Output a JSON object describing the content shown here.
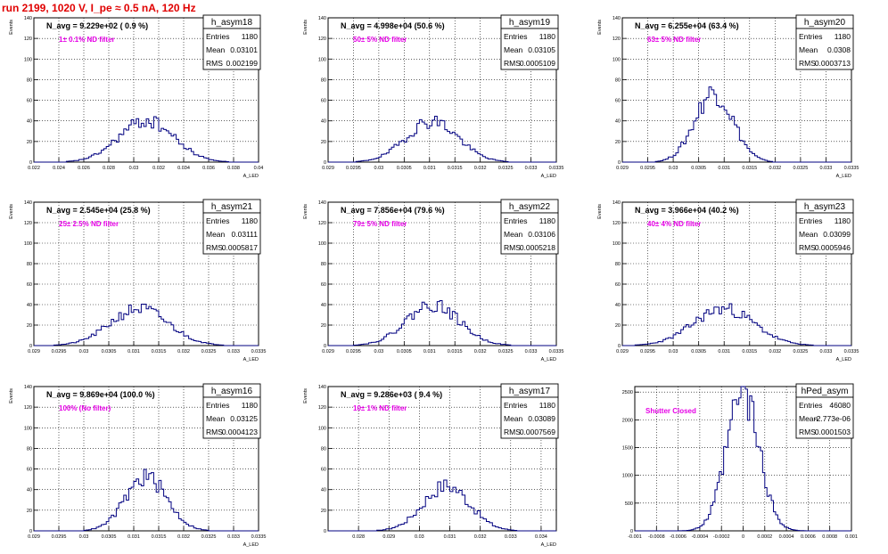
{
  "title": "run 2199,  1020 V, I_pe ≈ 0.5 nA, 120 Hz",
  "chart_data": [
    {
      "type": "histogram",
      "name": "h_asym18",
      "avg_label": "N_avg = 9.229e+02 ( 0.9 %)",
      "filter_label": "1± 0.1% ND filter",
      "stats": {
        "entries": "1180",
        "mean": "0.03101",
        "rms": "0.002199"
      },
      "ylabel": "Events",
      "xlabel": "A_LED",
      "xlim": [
        0.022,
        0.04
      ],
      "ylim": [
        0,
        140
      ],
      "xticks": [
        0.022,
        0.024,
        0.026,
        0.028,
        0.03,
        0.032,
        0.034,
        0.036,
        0.038,
        0.04
      ],
      "xtick_labels": [
        "0.022",
        "0.024",
        "0.026",
        "0.028",
        "0.03",
        "0.032",
        "0.034",
        "0.036",
        "0.038",
        "0.04"
      ],
      "yticks": [
        0,
        20,
        40,
        60,
        80,
        100,
        120,
        140
      ],
      "mean": 0.03101,
      "rms": 0.002199,
      "peak": 40,
      "bin_width": 0.0002,
      "seed": 18
    },
    {
      "type": "histogram",
      "name": "h_asym19",
      "avg_label": "N_avg = 4.998e+04 (50.6 %)",
      "filter_label": "50± 5% ND filter",
      "stats": {
        "entries": "1180",
        "mean": "0.03105",
        "rms": "0.0005109"
      },
      "ylabel": "Events",
      "xlabel": "A_LED",
      "xlim": [
        0.029,
        0.0335
      ],
      "ylim": [
        0,
        140
      ],
      "xticks": [
        0.029,
        0.0295,
        0.03,
        0.0305,
        0.031,
        0.0315,
        0.032,
        0.0325,
        0.033,
        0.0335
      ],
      "xtick_labels": [
        "0.029",
        "0.0295",
        "0.03",
        "0.0305",
        "0.031",
        "0.0315",
        "0.032",
        "0.0325",
        "0.033",
        "0.0335"
      ],
      "yticks": [
        0,
        20,
        40,
        60,
        80,
        100,
        120,
        140
      ],
      "mean": 0.03105,
      "rms": 0.0005109,
      "peak": 40,
      "bin_width": 5e-05,
      "seed": 19
    },
    {
      "type": "histogram",
      "name": "h_asym20",
      "avg_label": "N_avg = 6.255e+04 (63.4 %)",
      "filter_label": "63± 5% ND filter",
      "stats": {
        "entries": "1180",
        "mean": "0.0308",
        "rms": "0.0003713"
      },
      "ylabel": "Events",
      "xlabel": "A_LED",
      "xlim": [
        0.029,
        0.0335
      ],
      "ylim": [
        0,
        140
      ],
      "xticks": [
        0.029,
        0.0295,
        0.03,
        0.0305,
        0.031,
        0.0315,
        0.032,
        0.0325,
        0.033,
        0.0335
      ],
      "xtick_labels": [
        "0.029",
        "0.0295",
        "0.03",
        "0.0305",
        "0.031",
        "0.0315",
        "0.032",
        "0.0325",
        "0.033",
        "0.0335"
      ],
      "yticks": [
        0,
        20,
        40,
        60,
        80,
        100,
        120,
        140
      ],
      "mean": 0.0308,
      "rms": 0.0003713,
      "peak": 68,
      "bin_width": 5e-05,
      "seed": 20
    },
    {
      "type": "histogram",
      "name": "h_asym21",
      "avg_label": "N_avg = 2.545e+04 (25.8 %)",
      "filter_label": "25± 2.5% ND filter",
      "stats": {
        "entries": "1180",
        "mean": "0.03111",
        "rms": "0.0005817"
      },
      "ylabel": "Events",
      "xlabel": "A_LED",
      "xlim": [
        0.029,
        0.0335
      ],
      "ylim": [
        0,
        140
      ],
      "xticks": [
        0.029,
        0.0295,
        0.03,
        0.0305,
        0.031,
        0.0315,
        0.032,
        0.0325,
        0.033,
        0.0335
      ],
      "xtick_labels": [
        "0.029",
        "0.0295",
        "0.03",
        "0.0305",
        "0.031",
        "0.0315",
        "0.032",
        "0.0325",
        "0.033",
        "0.0335"
      ],
      "yticks": [
        0,
        20,
        40,
        60,
        80,
        100,
        120,
        140
      ],
      "mean": 0.03111,
      "rms": 0.0005817,
      "peak": 36,
      "bin_width": 5e-05,
      "seed": 21
    },
    {
      "type": "histogram",
      "name": "h_asym22",
      "avg_label": "N_avg = 7.856e+04 (79.6 %)",
      "filter_label": "79± 5% ND filter",
      "stats": {
        "entries": "1180",
        "mean": "0.03106",
        "rms": "0.0005218"
      },
      "ylabel": "Events",
      "xlabel": "A_LED",
      "xlim": [
        0.029,
        0.0335
      ],
      "ylim": [
        0,
        140
      ],
      "xticks": [
        0.029,
        0.0295,
        0.03,
        0.0305,
        0.031,
        0.0315,
        0.032,
        0.0325,
        0.033,
        0.0335
      ],
      "xtick_labels": [
        "0.029",
        "0.0295",
        "0.03",
        "0.0305",
        "0.031",
        "0.0315",
        "0.032",
        "0.0325",
        "0.033",
        "0.0335"
      ],
      "yticks": [
        0,
        20,
        40,
        60,
        80,
        100,
        120,
        140
      ],
      "mean": 0.03106,
      "rms": 0.0005218,
      "peak": 40,
      "bin_width": 5e-05,
      "seed": 22
    },
    {
      "type": "histogram",
      "name": "h_asym23",
      "avg_label": "N_avg = 3.966e+04 (40.2 %)",
      "filter_label": "40± 4% ND filter",
      "stats": {
        "entries": "1180",
        "mean": "0.03099",
        "rms": "0.0005946"
      },
      "ylabel": "Events",
      "xlabel": "A_LED",
      "xlim": [
        0.029,
        0.0335
      ],
      "ylim": [
        0,
        140
      ],
      "xticks": [
        0.029,
        0.0295,
        0.03,
        0.0305,
        0.031,
        0.0315,
        0.032,
        0.0325,
        0.033,
        0.0335
      ],
      "xtick_labels": [
        "0.029",
        "0.0295",
        "0.03",
        "0.0305",
        "0.031",
        "0.0315",
        "0.032",
        "0.0325",
        "0.033",
        "0.0335"
      ],
      "yticks": [
        0,
        20,
        40,
        60,
        80,
        100,
        120,
        140
      ],
      "mean": 0.03099,
      "rms": 0.0005946,
      "peak": 36,
      "bin_width": 5e-05,
      "seed": 23
    },
    {
      "type": "histogram",
      "name": "h_asym16",
      "avg_label": "N_avg = 9.869e+04 (100.0 %)",
      "filter_label": "100% (No filter)",
      "stats": {
        "entries": "1180",
        "mean": "0.03125",
        "rms": "0.0004123"
      },
      "ylabel": "Events",
      "xlabel": "A_LED",
      "xlim": [
        0.029,
        0.0335
      ],
      "ylim": [
        0,
        140
      ],
      "xticks": [
        0.029,
        0.0295,
        0.03,
        0.0305,
        0.031,
        0.0315,
        0.032,
        0.0325,
        0.033,
        0.0335
      ],
      "xtick_labels": [
        "0.029",
        "0.0295",
        "0.03",
        "0.0305",
        "0.031",
        "0.0315",
        "0.032",
        "0.0325",
        "0.033",
        "0.0335"
      ],
      "yticks": [
        0,
        20,
        40,
        60,
        80,
        100,
        120,
        140
      ],
      "mean": 0.03125,
      "rms": 0.0004123,
      "peak": 52,
      "bin_width": 5e-05,
      "seed": 16
    },
    {
      "type": "histogram",
      "name": "h_asym17",
      "avg_label": "N_avg = 9.286e+03 ( 9.4 %)",
      "filter_label": "10± 1% ND filter",
      "stats": {
        "entries": "1180",
        "mean": "0.03089",
        "rms": "0.0007569"
      },
      "ylabel": "Events",
      "xlabel": "A_LED",
      "xlim": [
        0.027,
        0.0345
      ],
      "ylim": [
        0,
        140
      ],
      "xticks": [
        0.028,
        0.029,
        0.03,
        0.031,
        0.032,
        0.033,
        0.034
      ],
      "xtick_labels": [
        "0.028",
        "0.029",
        "0.03",
        "0.031",
        "0.032",
        "0.033",
        "0.034"
      ],
      "yticks": [
        0,
        20,
        40,
        60,
        80,
        100,
        120,
        140
      ],
      "mean": 0.03089,
      "rms": 0.0007569,
      "peak": 44,
      "bin_width": 0.0001,
      "seed": 17
    },
    {
      "type": "histogram",
      "name": "hPed_asym",
      "avg_label": "",
      "filter_label": "Shutter Closed",
      "stats": {
        "entries": "46080",
        "mean": "-2.773e-06",
        "rms": "0.0001503"
      },
      "ylabel": "",
      "xlabel": "",
      "xlim": [
        -0.001,
        0.001
      ],
      "ylim": [
        0,
        2600
      ],
      "xticks": [
        -0.001,
        -0.0008,
        -0.0006,
        -0.0004,
        -0.0002,
        0,
        0.0002,
        0.0004,
        0.0006,
        0.0008,
        0.001
      ],
      "xtick_labels": [
        "-0.001",
        "-0.0008",
        "-0.0006",
        "-0.0004",
        "-0.0002",
        "0",
        "0.0002",
        "0.0004",
        "0.0006",
        "0.0008",
        "0.001"
      ],
      "yticks": [
        0,
        500,
        1000,
        1500,
        2000,
        2500
      ],
      "mean": -2.773e-06,
      "rms": 0.0001503,
      "peak": 2450,
      "bin_width": 2e-05,
      "seed": 99
    }
  ]
}
